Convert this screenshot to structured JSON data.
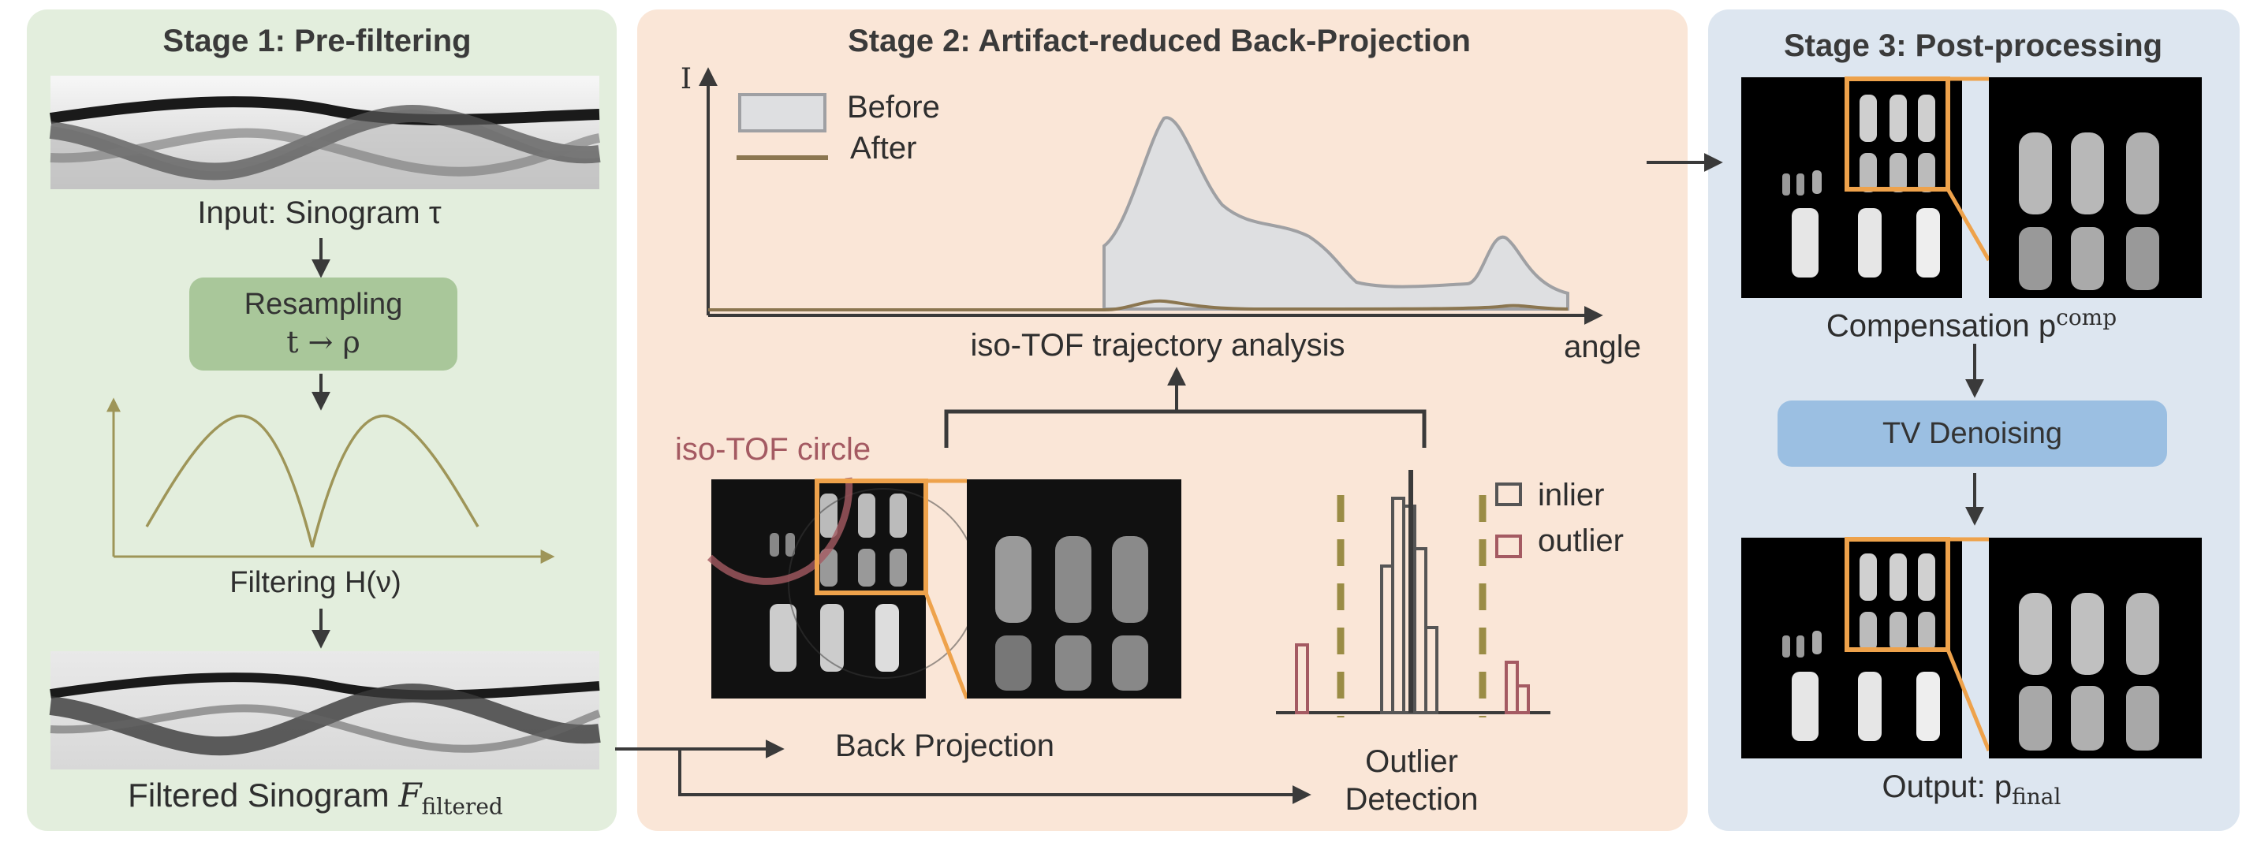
{
  "colors": {
    "stage1_bg": "#e3eedd",
    "stage2_bg": "#fae6d7",
    "stage3_bg": "#dde6f0",
    "resampling_box": "#a9c79a",
    "tv_box": "#9bbfe2",
    "filter_curve": "#9e9558",
    "before_fill": "#dedfe1",
    "after_line": "#8b7650",
    "zoom_frame": "#eea24b",
    "outlier": "#a45a62",
    "threshold": "#9a8c45",
    "iso_tof_circle": "#a45a62"
  },
  "stage1": {
    "title": "Stage 1: Pre-filtering",
    "input_label": "Input: Sinogram τ",
    "resampling_line1": "Resampling",
    "resampling_line2": "t → ρ",
    "filtering_label": "Filtering H(ν)",
    "filtered_label_text": "Filtered Sinogram ",
    "filtered_symbol": "F",
    "filtered_subscript": "filtered"
  },
  "stage2": {
    "title": "Stage 2: Artifact-reduced Back-Projection",
    "axis_y": "I",
    "axis_x": "angle",
    "legend_before": "Before",
    "legend_after": "After",
    "trajectory_label": "iso-TOF trajectory analysis",
    "iso_tof_label": "iso-TOF circle",
    "back_projection_label": "Back Projection",
    "legend_inlier": "inlier",
    "legend_outlier": "outlier",
    "outlier_label_line1": "Outlier",
    "outlier_label_line2": "Detection"
  },
  "stage3": {
    "title": "Stage 3: Post-processing",
    "compensation_label": "Compensation p",
    "compensation_superscript": "comp",
    "tv_label": "TV Denoising",
    "output_label": "Output: p",
    "output_subscript": "final"
  }
}
